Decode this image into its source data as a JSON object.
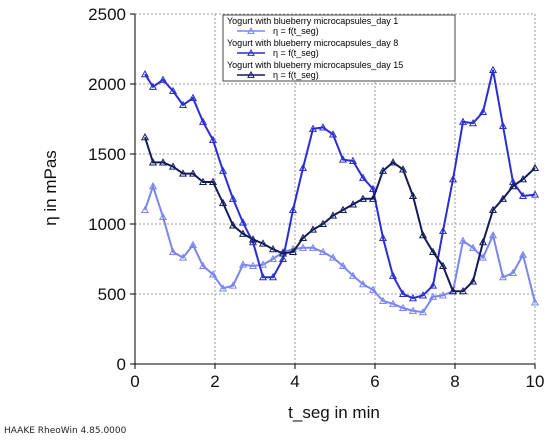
{
  "footer": "HAAKE RheoWin 4.85.0000",
  "chart_data": {
    "type": "line",
    "xlabel": "t_seg in min",
    "ylabel": "η in mPas",
    "xlim": [
      0,
      10
    ],
    "ylim": [
      0,
      2500
    ],
    "xticks": [
      0,
      2,
      4,
      6,
      8,
      10
    ],
    "yticks": [
      0,
      500,
      1000,
      1500,
      2000,
      2500
    ],
    "grid": true,
    "legend_position": "top-right",
    "series": [
      {
        "name": "Yogurt with blueberry microcapsules_day 1",
        "subname": "η = f(t_seg)",
        "color": "#7a85ee",
        "x": [
          0.25,
          0.45,
          0.7,
          0.95,
          1.2,
          1.45,
          1.7,
          1.95,
          2.2,
          2.45,
          2.7,
          2.95,
          3.2,
          3.45,
          3.7,
          3.95,
          4.2,
          4.45,
          4.7,
          4.95,
          5.2,
          5.45,
          5.7,
          5.95,
          6.2,
          6.45,
          6.7,
          6.95,
          7.2,
          7.45,
          7.7,
          7.95,
          8.2,
          8.45,
          8.7,
          8.95,
          9.2,
          9.45,
          9.7,
          10.0
        ],
        "y": [
          1100,
          1270,
          1050,
          800,
          760,
          850,
          700,
          640,
          540,
          560,
          710,
          700,
          710,
          750,
          800,
          820,
          830,
          830,
          800,
          760,
          700,
          630,
          570,
          530,
          450,
          430,
          400,
          380,
          370,
          480,
          490,
          520,
          880,
          830,
          760,
          920,
          620,
          650,
          780,
          440
        ]
      },
      {
        "name": "Yogurt with blueberry microcapsules_day 8",
        "subname": "η = f(t_seg)",
        "color": "#2a2ed0",
        "x": [
          0.25,
          0.45,
          0.7,
          0.95,
          1.2,
          1.45,
          1.7,
          1.95,
          2.2,
          2.45,
          2.7,
          2.95,
          3.2,
          3.45,
          3.7,
          3.95,
          4.2,
          4.45,
          4.7,
          4.95,
          5.2,
          5.45,
          5.7,
          5.95,
          6.2,
          6.45,
          6.7,
          6.95,
          7.2,
          7.45,
          7.7,
          7.95,
          8.2,
          8.45,
          8.7,
          8.95,
          9.2,
          9.45,
          9.7,
          10.0
        ],
        "y": [
          2070,
          1980,
          2030,
          1950,
          1850,
          1900,
          1730,
          1600,
          1380,
          1180,
          1010,
          870,
          620,
          620,
          750,
          1100,
          1400,
          1680,
          1690,
          1640,
          1460,
          1450,
          1330,
          1250,
          900,
          630,
          500,
          470,
          490,
          560,
          950,
          1320,
          1730,
          1720,
          1800,
          2100,
          1700,
          1300,
          1200,
          1210
        ]
      },
      {
        "name": "Yogurt with blueberry microcapsules_day 15",
        "subname": "η = f(t_seg)",
        "color": "#141a5a",
        "x": [
          0.25,
          0.45,
          0.7,
          0.95,
          1.2,
          1.45,
          1.7,
          1.95,
          2.2,
          2.45,
          2.7,
          2.95,
          3.2,
          3.45,
          3.7,
          3.95,
          4.2,
          4.45,
          4.7,
          4.95,
          5.2,
          5.45,
          5.7,
          5.95,
          6.2,
          6.45,
          6.7,
          6.95,
          7.2,
          7.45,
          7.7,
          7.95,
          8.2,
          8.45,
          8.7,
          8.95,
          9.2,
          9.45,
          9.7,
          10.0
        ],
        "y": [
          1620,
          1440,
          1440,
          1410,
          1360,
          1360,
          1300,
          1300,
          1150,
          990,
          930,
          890,
          860,
          820,
          790,
          800,
          900,
          960,
          1000,
          1060,
          1100,
          1140,
          1180,
          1180,
          1380,
          1440,
          1390,
          1200,
          920,
          800,
          700,
          520,
          520,
          590,
          870,
          1100,
          1180,
          1270,
          1320,
          1400
        ]
      }
    ]
  }
}
